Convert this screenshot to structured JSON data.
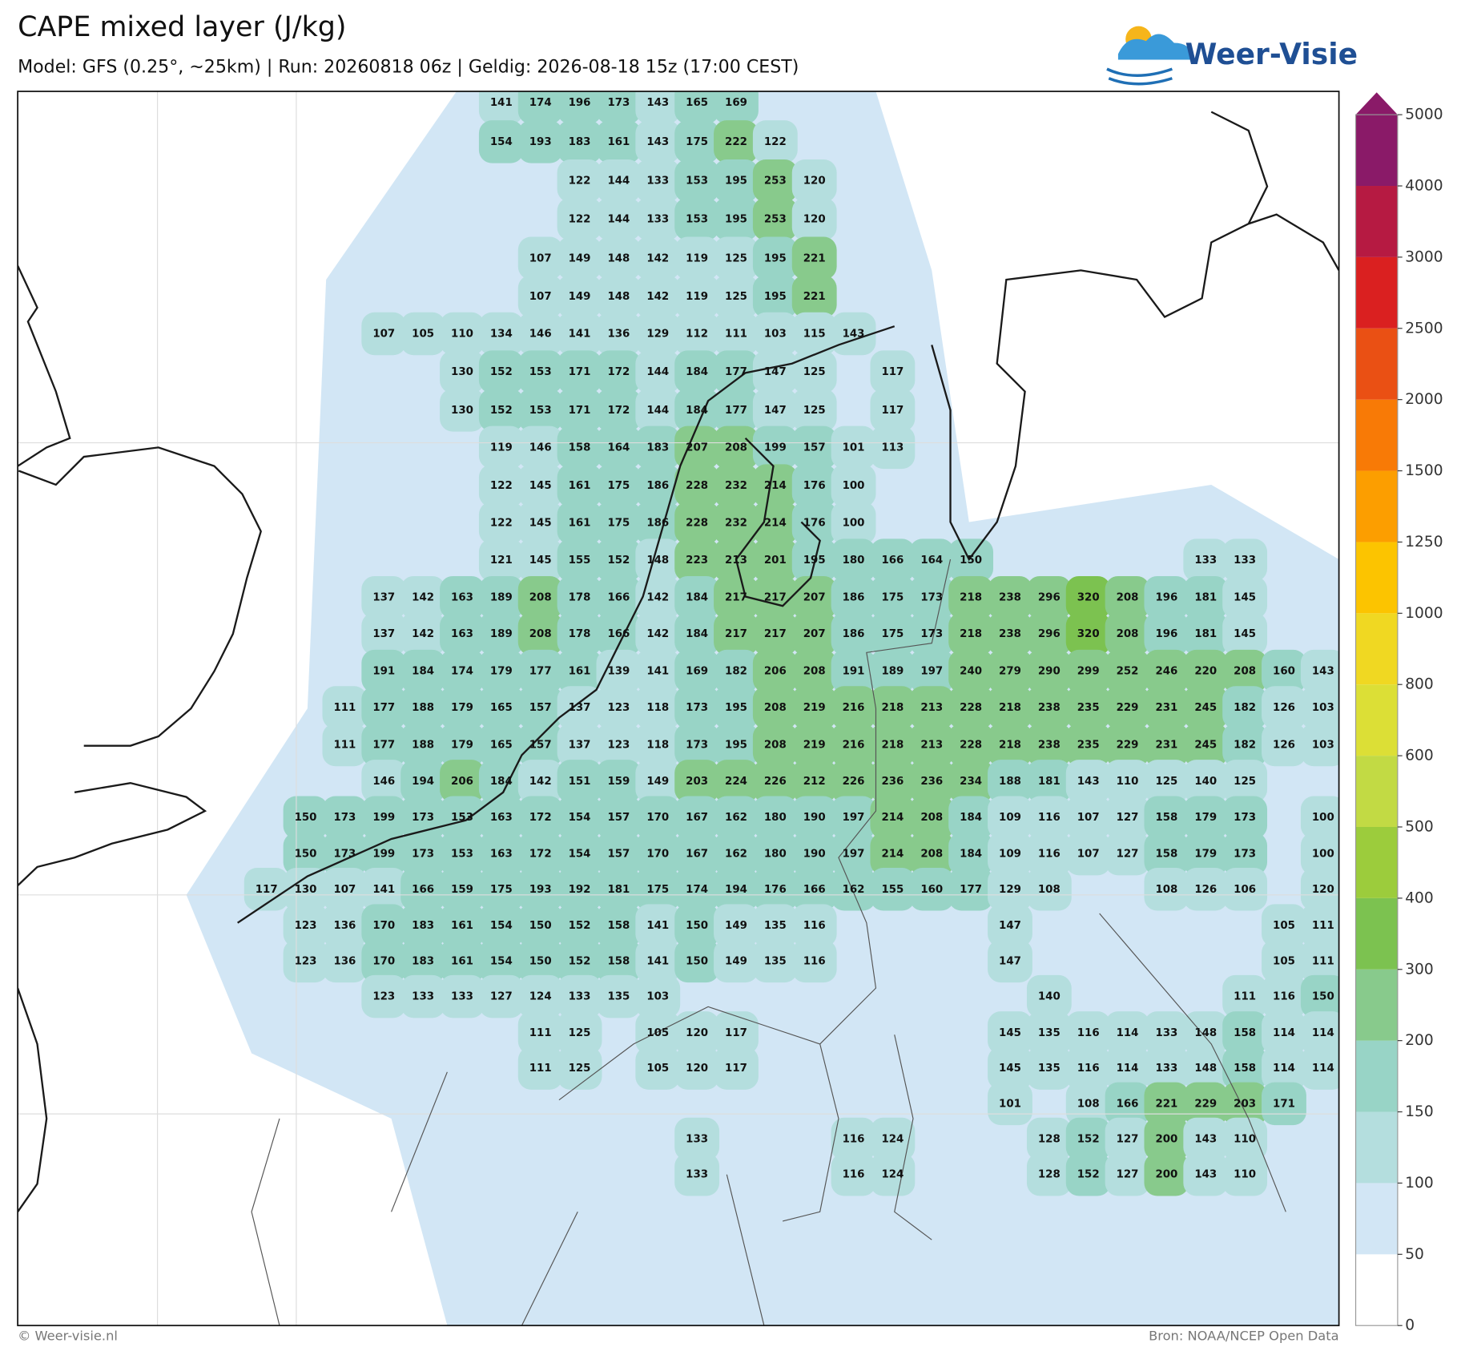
{
  "header": {
    "title": "CAPE mixed layer (J/kg)",
    "subtitle": "Model: GFS (0.25°, ~25km)  |  Run: 20260818 06z  |  Geldig: 2026-08-18 15z (17:00 CEST)"
  },
  "logo": "Weer-Visie",
  "map": {
    "rows": [
      [
        null,
        null,
        null,
        null,
        null,
        null,
        141,
        174,
        196,
        173,
        143,
        165,
        169,
        null,
        null,
        null,
        null,
        null,
        null,
        null,
        null,
        null,
        null,
        null,
        null,
        null,
        null,
        null
      ],
      [
        null,
        null,
        null,
        null,
        null,
        null,
        154,
        193,
        183,
        161,
        143,
        175,
        222,
        122,
        null,
        null,
        null,
        null,
        null,
        null,
        null,
        null,
        null,
        null,
        null,
        null,
        null,
        null
      ],
      [
        null,
        null,
        null,
        null,
        null,
        null,
        null,
        null,
        122,
        144,
        133,
        153,
        195,
        253,
        120,
        null,
        null,
        null,
        null,
        null,
        null,
        null,
        null,
        null,
        null,
        null,
        null,
        null
      ],
      [
        null,
        null,
        null,
        null,
        null,
        null,
        null,
        null,
        122,
        144,
        133,
        153,
        195,
        253,
        120,
        null,
        null,
        null,
        null,
        null,
        null,
        null,
        null,
        null,
        null,
        null,
        null,
        null
      ],
      [
        null,
        null,
        null,
        null,
        null,
        null,
        null,
        107,
        149,
        148,
        142,
        119,
        125,
        195,
        221,
        null,
        null,
        null,
        null,
        null,
        null,
        null,
        null,
        null,
        null,
        null,
        null,
        null
      ],
      [
        null,
        null,
        null,
        null,
        null,
        null,
        null,
        107,
        149,
        148,
        142,
        119,
        125,
        195,
        221,
        null,
        null,
        null,
        null,
        null,
        null,
        null,
        null,
        null,
        null,
        null,
        null,
        null
      ],
      [
        null,
        null,
        null,
        107,
        105,
        110,
        134,
        146,
        141,
        136,
        129,
        112,
        111,
        103,
        115,
        143,
        null,
        null,
        null,
        null,
        null,
        null,
        null,
        null,
        null,
        null,
        null,
        null
      ],
      [
        null,
        null,
        null,
        null,
        null,
        130,
        152,
        153,
        171,
        172,
        144,
        184,
        177,
        147,
        125,
        null,
        117,
        null,
        null,
        null,
        null,
        null,
        null,
        null,
        null,
        null,
        null,
        null
      ],
      [
        null,
        null,
        null,
        null,
        null,
        130,
        152,
        153,
        171,
        172,
        144,
        184,
        177,
        147,
        125,
        null,
        117,
        null,
        null,
        null,
        null,
        null,
        null,
        null,
        null,
        null,
        null,
        null
      ],
      [
        null,
        null,
        null,
        null,
        null,
        null,
        119,
        146,
        158,
        164,
        183,
        207,
        208,
        199,
        157,
        101,
        113,
        null,
        null,
        null,
        null,
        null,
        null,
        null,
        null,
        null,
        null,
        null
      ],
      [
        null,
        null,
        null,
        null,
        null,
        null,
        122,
        145,
        161,
        175,
        186,
        228,
        232,
        214,
        176,
        100,
        null,
        null,
        null,
        null,
        null,
        null,
        null,
        null,
        null,
        null,
        null,
        null
      ],
      [
        null,
        null,
        null,
        null,
        null,
        null,
        122,
        145,
        161,
        175,
        186,
        228,
        232,
        214,
        176,
        100,
        null,
        null,
        null,
        null,
        null,
        null,
        null,
        null,
        null,
        null,
        null,
        null
      ],
      [
        null,
        null,
        null,
        null,
        null,
        null,
        121,
        145,
        155,
        152,
        148,
        223,
        213,
        201,
        195,
        180,
        166,
        164,
        150,
        null,
        null,
        null,
        null,
        null,
        133,
        133,
        null,
        null
      ],
      [
        null,
        null,
        null,
        137,
        142,
        163,
        189,
        208,
        178,
        166,
        142,
        184,
        217,
        217,
        207,
        186,
        175,
        173,
        218,
        238,
        296,
        320,
        208,
        196,
        181,
        145,
        null,
        null
      ],
      [
        null,
        null,
        null,
        137,
        142,
        163,
        189,
        208,
        178,
        166,
        142,
        184,
        217,
        217,
        207,
        186,
        175,
        173,
        218,
        238,
        296,
        320,
        208,
        196,
        181,
        145,
        null,
        null
      ],
      [
        null,
        null,
        null,
        191,
        184,
        174,
        179,
        177,
        161,
        139,
        141,
        169,
        182,
        206,
        208,
        191,
        189,
        197,
        240,
        279,
        290,
        299,
        252,
        246,
        220,
        208,
        160,
        143
      ],
      [
        null,
        null,
        111,
        177,
        188,
        179,
        165,
        157,
        137,
        123,
        118,
        173,
        195,
        208,
        219,
        216,
        218,
        213,
        228,
        218,
        238,
        235,
        229,
        231,
        245,
        182,
        126,
        103
      ],
      [
        null,
        null,
        111,
        177,
        188,
        179,
        165,
        157,
        137,
        123,
        118,
        173,
        195,
        208,
        219,
        216,
        218,
        213,
        228,
        218,
        238,
        235,
        229,
        231,
        245,
        182,
        126,
        103
      ],
      [
        null,
        null,
        null,
        146,
        194,
        206,
        184,
        142,
        151,
        159,
        149,
        203,
        224,
        226,
        212,
        226,
        236,
        236,
        234,
        188,
        181,
        143,
        110,
        125,
        140,
        125,
        null,
        null
      ],
      [
        null,
        150,
        173,
        199,
        173,
        153,
        163,
        172,
        154,
        157,
        170,
        167,
        162,
        180,
        190,
        197,
        214,
        208,
        184,
        109,
        116,
        107,
        127,
        158,
        179,
        173,
        null,
        100
      ],
      [
        null,
        150,
        173,
        199,
        173,
        153,
        163,
        172,
        154,
        157,
        170,
        167,
        162,
        180,
        190,
        197,
        214,
        208,
        184,
        109,
        116,
        107,
        127,
        158,
        179,
        173,
        null,
        100
      ],
      [
        117,
        130,
        107,
        141,
        166,
        159,
        175,
        193,
        192,
        181,
        175,
        174,
        194,
        176,
        166,
        162,
        155,
        160,
        177,
        129,
        108,
        null,
        null,
        108,
        126,
        106,
        null,
        120
      ],
      [
        null,
        123,
        136,
        170,
        183,
        161,
        154,
        150,
        152,
        158,
        141,
        150,
        149,
        135,
        116,
        null,
        null,
        null,
        null,
        147,
        null,
        null,
        null,
        null,
        null,
        null,
        105,
        111
      ],
      [
        null,
        123,
        136,
        170,
        183,
        161,
        154,
        150,
        152,
        158,
        141,
        150,
        149,
        135,
        116,
        null,
        null,
        null,
        null,
        147,
        null,
        null,
        null,
        null,
        null,
        null,
        105,
        111
      ],
      [
        null,
        null,
        null,
        123,
        133,
        133,
        127,
        124,
        133,
        135,
        103,
        null,
        null,
        null,
        null,
        null,
        null,
        null,
        null,
        null,
        140,
        null,
        null,
        null,
        null,
        111,
        116,
        150
      ],
      [
        null,
        null,
        null,
        null,
        null,
        null,
        null,
        111,
        125,
        null,
        105,
        120,
        117,
        null,
        null,
        null,
        null,
        null,
        null,
        145,
        135,
        116,
        114,
        133,
        148,
        158,
        114,
        114
      ],
      [
        null,
        null,
        null,
        null,
        null,
        null,
        null,
        111,
        125,
        null,
        105,
        120,
        117,
        null,
        null,
        null,
        null,
        null,
        null,
        145,
        135,
        116,
        114,
        133,
        148,
        158,
        114,
        114
      ],
      [
        null,
        null,
        null,
        null,
        null,
        null,
        null,
        null,
        null,
        null,
        null,
        null,
        null,
        null,
        null,
        null,
        null,
        null,
        null,
        101,
        null,
        108,
        166,
        221,
        229,
        203,
        171,
        null
      ],
      [
        null,
        null,
        null,
        null,
        null,
        null,
        null,
        null,
        null,
        null,
        null,
        133,
        null,
        null,
        null,
        116,
        124,
        null,
        null,
        null,
        128,
        152,
        127,
        200,
        143,
        110,
        null,
        null
      ],
      [
        null,
        null,
        null,
        null,
        null,
        null,
        null,
        null,
        null,
        null,
        null,
        133,
        null,
        null,
        null,
        116,
        124,
        null,
        null,
        null,
        128,
        152,
        127,
        200,
        143,
        110,
        null,
        null
      ]
    ]
  },
  "colorbar": {
    "levels": [
      0,
      50,
      100,
      150,
      200,
      300,
      400,
      500,
      600,
      800,
      1000,
      1250,
      1500,
      2000,
      2500,
      3000,
      4000,
      5000
    ],
    "colors": [
      "#ffffff",
      "#d2e6f5",
      "#b4dede",
      "#98d4c6",
      "#88ca8c",
      "#7cc250",
      "#9ccc3c",
      "#c2da44",
      "#dcdf36",
      "#f0d822",
      "#fcc400",
      "#fc9e00",
      "#f87a06",
      "#ea5014",
      "#da2020",
      "#b61a42",
      "#8a1a68"
    ]
  },
  "footer": {
    "left": "© Weer-visie.nl",
    "right": "Bron: NOAA/NCEP Open Data"
  }
}
